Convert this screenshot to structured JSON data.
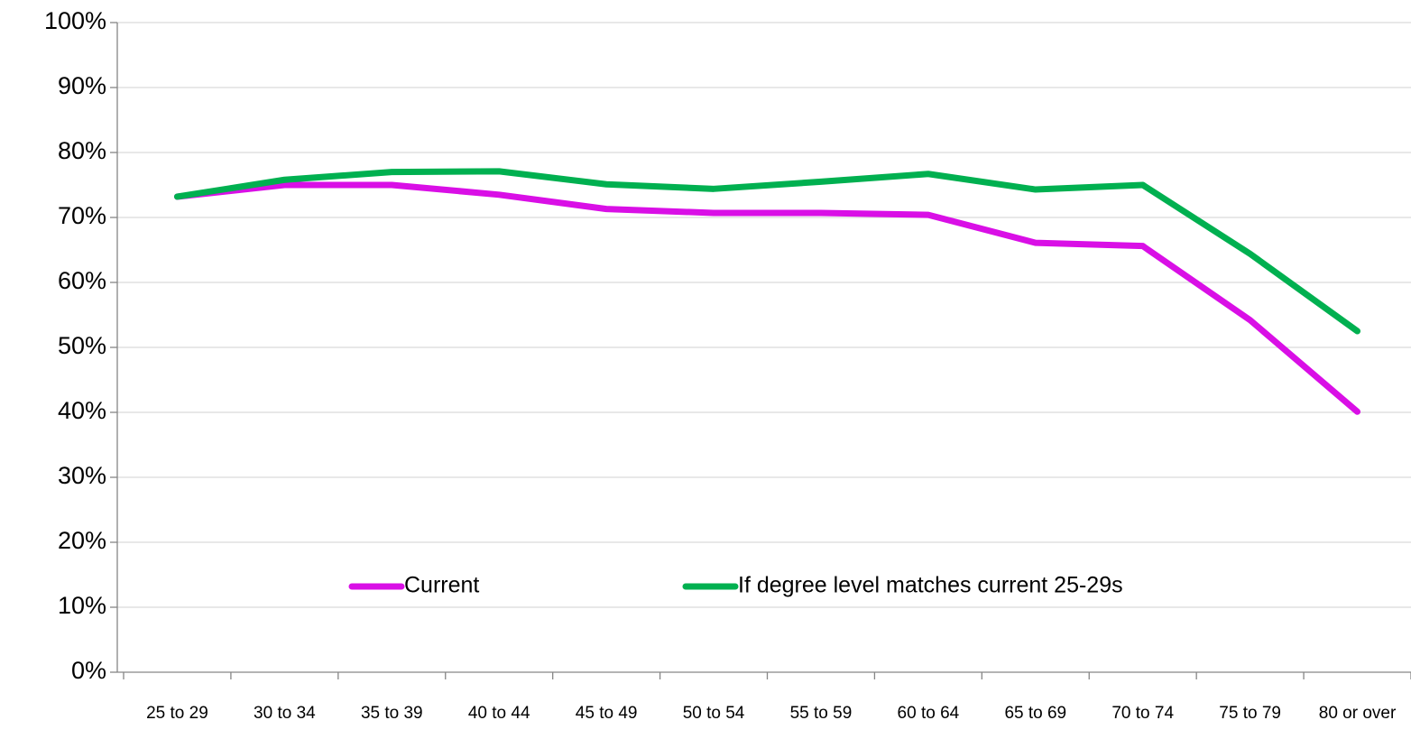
{
  "chart_data": {
    "type": "line",
    "categories": [
      "25 to 29",
      "30 to 34",
      "35 to 39",
      "40 to 44",
      "45 to 49",
      "50 to 54",
      "55 to 59",
      "60 to 64",
      "65 to 69",
      "70 to 74",
      "75 to 79",
      "80 or over"
    ],
    "series": [
      {
        "name": "Current",
        "color": "#d90fe6",
        "values": [
          73.2,
          75,
          75,
          73.5,
          71.3,
          70.7,
          70.7,
          70.4,
          66.1,
          65.6,
          54.2,
          40.1
        ]
      },
      {
        "name": "If degree level matches current 25-29s",
        "color": "#00b050",
        "values": [
          73.2,
          75.8,
          77,
          77.1,
          75.1,
          74.4,
          75.5,
          76.7,
          74.3,
          75,
          64.4,
          52.5
        ]
      }
    ],
    "ylim": [
      0,
      100
    ],
    "yticks": [
      {
        "value": 0,
        "label": "0%"
      },
      {
        "value": 10,
        "label": "10%"
      },
      {
        "value": 20,
        "label": "20%"
      },
      {
        "value": 30,
        "label": "30%"
      },
      {
        "value": 40,
        "label": "40%"
      },
      {
        "value": 50,
        "label": "50%"
      },
      {
        "value": 60,
        "label": "60%"
      },
      {
        "value": 70,
        "label": "70%"
      },
      {
        "value": 80,
        "label": "80%"
      },
      {
        "value": 90,
        "label": "90%"
      },
      {
        "value": 100,
        "label": "100%"
      }
    ],
    "grid": true,
    "legend": "bottom"
  }
}
